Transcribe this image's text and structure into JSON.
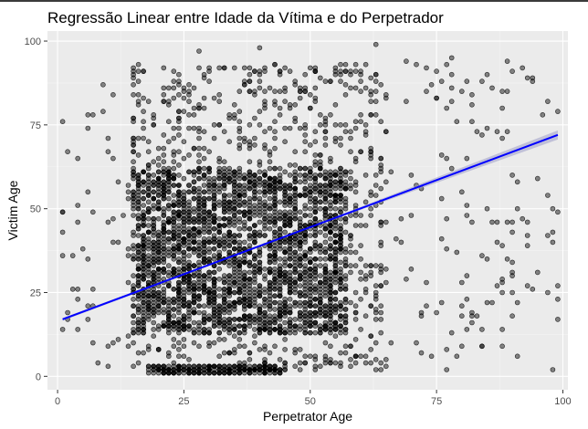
{
  "chart_data": {
    "type": "scatter",
    "title": "Regressão Linear entre Idade da Vítima e do Perpetrador",
    "xlabel": "Perpetrator Age",
    "ylabel": "Victim Age",
    "xlim": [
      -2,
      101
    ],
    "ylim": [
      -4,
      103
    ],
    "x_ticks": [
      0,
      25,
      50,
      75,
      100
    ],
    "y_ticks": [
      0,
      25,
      50,
      75,
      100
    ],
    "x_tick_labels": [
      "0",
      "25",
      "50",
      "75",
      "100"
    ],
    "y_tick_labels": [
      "0",
      "25",
      "50",
      "75",
      "100"
    ],
    "grid": true,
    "legend": "none",
    "point_color": "#000000",
    "point_opacity": 0.45,
    "background_color": "#ebebeb",
    "regression": {
      "type": "linear",
      "color": "#0000ff",
      "band_color": "#9c9cc8",
      "x": [
        1,
        99
      ],
      "y": [
        17,
        72
      ]
    },
    "scatter_layers": [
      {
        "x_range": [
          15,
          57
        ],
        "y_range": [
          13,
          62
        ],
        "count": 2200,
        "age_step": 1
      },
      {
        "x_range": [
          14,
          65
        ],
        "y_range": [
          2,
          93
        ],
        "count": 1100,
        "age_step": 1
      },
      {
        "x_range": [
          18,
          45
        ],
        "y_range": [
          1,
          3
        ],
        "count": 260,
        "age_step": 1
      },
      {
        "x_range": [
          65,
          99
        ],
        "y_range": [
          5,
          95
        ],
        "count": 120,
        "age_step": 1
      },
      {
        "x_range": [
          1,
          14
        ],
        "y_range": [
          1,
          88
        ],
        "count": 40,
        "age_step": 1
      }
    ],
    "points": [
      [
        1,
        49
      ],
      [
        3,
        26
      ],
      [
        6,
        55
      ],
      [
        8,
        4
      ],
      [
        11,
        84
      ],
      [
        11,
        47
      ],
      [
        77,
        80
      ],
      [
        78,
        82
      ],
      [
        80,
        85
      ],
      [
        82,
        84
      ],
      [
        84,
        88
      ],
      [
        86,
        86
      ],
      [
        88,
        85
      ],
      [
        85,
        90
      ],
      [
        90,
        91
      ],
      [
        92,
        92
      ],
      [
        94,
        89
      ],
      [
        99,
        49
      ],
      [
        99,
        27
      ],
      [
        99,
        23
      ],
      [
        98,
        2
      ],
      [
        72,
        18
      ],
      [
        77,
        2
      ],
      [
        77,
        8
      ],
      [
        74,
        6
      ],
      [
        82,
        16
      ],
      [
        88,
        14
      ],
      [
        80,
        28
      ],
      [
        63,
        99
      ],
      [
        40,
        98
      ],
      [
        28,
        97
      ]
    ]
  }
}
